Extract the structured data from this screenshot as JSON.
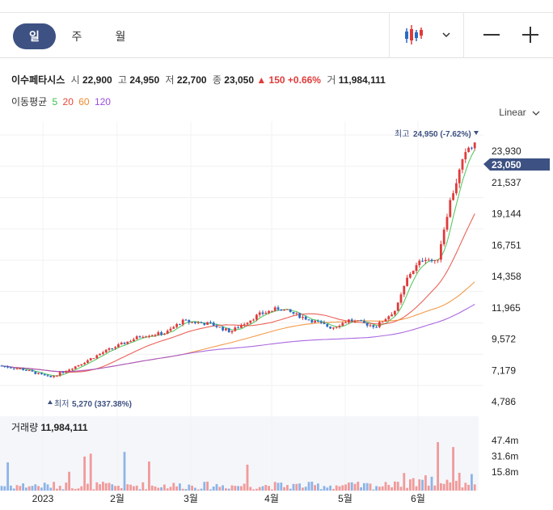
{
  "toolbar": {
    "tabs": [
      {
        "label": "일",
        "active": true
      },
      {
        "label": "주",
        "active": false
      },
      {
        "label": "월",
        "active": false
      }
    ],
    "chart_type_icon": "candlestick-icon",
    "dropdown_icon": "chevron-down-icon",
    "zoom_out_icon": "minus-icon",
    "zoom_in_icon": "plus-icon"
  },
  "quote": {
    "name": "이수페타시스",
    "open_label": "시",
    "open": "22,900",
    "high_label": "고",
    "high": "24,950",
    "low_label": "저",
    "low": "22,700",
    "close_label": "종",
    "close": "23,050",
    "change": "▲ 150",
    "change_pct": "+0.66%",
    "volume_label": "거",
    "volume": "11,984,111"
  },
  "moving_average": {
    "label": "이동평균",
    "periods": [
      {
        "value": "5",
        "color": "#3cbf4a"
      },
      {
        "value": "20",
        "color": "#e8453c"
      },
      {
        "value": "60",
        "color": "#f08a2d"
      },
      {
        "value": "120",
        "color": "#9b4ddb"
      }
    ]
  },
  "scale_selector": "Linear",
  "colors": {
    "up": "#e03b3b",
    "down": "#2b6cc4",
    "accent": "#3d5182"
  },
  "chart_data": {
    "type": "candlestick",
    "price_axis_ticks": [
      "23,930",
      "21,537",
      "19,144",
      "16,751",
      "14,358",
      "11,965",
      "9,572",
      "7,179",
      "4,786"
    ],
    "price_axis_values": [
      23930,
      21537,
      19144,
      16751,
      14358,
      11965,
      9572,
      7179,
      4786
    ],
    "current_price_label": "23,050",
    "current_price": 23050,
    "high_annotation": {
      "label": "최고",
      "value": "24,950 (-7.62%)"
    },
    "low_annotation": {
      "label": "최저",
      "value": "5,270 (337.38%)"
    },
    "x_axis_labels": [
      "2023",
      "2월",
      "3월",
      "4월",
      "5월",
      "6월"
    ],
    "volume": {
      "title": "거래량",
      "value": "11,984,111",
      "ticks": [
        "47.4m",
        "31.6m",
        "15.8m"
      ],
      "tick_values": [
        47.4,
        31.6,
        15.8
      ]
    }
  }
}
